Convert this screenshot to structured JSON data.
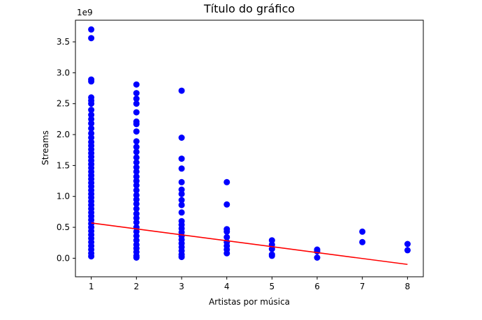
{
  "chart_data": {
    "type": "scatter",
    "title": "Título do gráfico",
    "xlabel": "Artistas por música",
    "ylabel": "Streams",
    "y_offset_label": "1e9",
    "xlim": [
      0.65,
      8.35
    ],
    "ylim": [
      -0.3,
      3.85
    ],
    "x_ticks": [
      1,
      2,
      3,
      4,
      5,
      6,
      7,
      8
    ],
    "x_tick_labels": [
      "1",
      "2",
      "3",
      "4",
      "5",
      "6",
      "7",
      "8"
    ],
    "y_ticks": [
      0.0,
      0.5,
      1.0,
      1.5,
      2.0,
      2.5,
      3.0,
      3.5
    ],
    "y_tick_labels": [
      "0.0",
      "0.5",
      "1.0",
      "1.5",
      "2.0",
      "2.5",
      "3.0",
      "3.5"
    ],
    "grid": false,
    "colors": {
      "points": "#0000ff",
      "trend": "#ff0000",
      "axes": "#000000"
    },
    "series": [
      {
        "kind": "points",
        "points": [
          [
            1,
            3.7
          ],
          [
            1,
            3.56
          ],
          [
            1,
            2.89
          ],
          [
            1,
            2.86
          ],
          [
            1,
            2.6
          ],
          [
            1,
            2.55
          ],
          [
            1,
            2.5
          ],
          [
            1,
            2.4
          ],
          [
            1,
            2.32
          ],
          [
            1,
            2.25
          ],
          [
            1,
            2.18
          ],
          [
            1,
            2.1
          ],
          [
            1,
            2.02
          ],
          [
            1,
            1.95
          ],
          [
            1,
            1.88
          ],
          [
            1,
            1.82
          ],
          [
            1,
            1.76
          ],
          [
            1,
            1.7
          ],
          [
            1,
            1.64
          ],
          [
            1,
            1.58
          ],
          [
            1,
            1.52
          ],
          [
            1,
            1.46
          ],
          [
            1,
            1.4
          ],
          [
            1,
            1.34
          ],
          [
            1,
            1.28
          ],
          [
            1,
            1.22
          ],
          [
            1,
            1.16
          ],
          [
            1,
            1.1
          ],
          [
            1,
            1.04
          ],
          [
            1,
            0.98
          ],
          [
            1,
            0.92
          ],
          [
            1,
            0.86
          ],
          [
            1,
            0.8
          ],
          [
            1,
            0.74
          ],
          [
            1,
            0.68
          ],
          [
            1,
            0.62
          ],
          [
            1,
            0.56
          ],
          [
            1,
            0.5
          ],
          [
            1,
            0.44
          ],
          [
            1,
            0.38
          ],
          [
            1,
            0.32
          ],
          [
            1,
            0.26
          ],
          [
            1,
            0.2
          ],
          [
            1,
            0.14
          ],
          [
            1,
            0.08
          ],
          [
            1,
            0.03
          ],
          [
            2,
            2.81
          ],
          [
            2,
            2.67
          ],
          [
            2,
            2.58
          ],
          [
            2,
            2.5
          ],
          [
            2,
            2.36
          ],
          [
            2,
            2.21
          ],
          [
            2,
            2.17
          ],
          [
            2,
            2.05
          ],
          [
            2,
            1.89
          ],
          [
            2,
            1.8
          ],
          [
            2,
            1.72
          ],
          [
            2,
            1.63
          ],
          [
            2,
            1.55
          ],
          [
            2,
            1.47
          ],
          [
            2,
            1.4
          ],
          [
            2,
            1.32
          ],
          [
            2,
            1.25
          ],
          [
            2,
            1.18
          ],
          [
            2,
            1.1
          ],
          [
            2,
            1.02
          ],
          [
            2,
            0.95
          ],
          [
            2,
            0.88
          ],
          [
            2,
            0.8
          ],
          [
            2,
            0.72
          ],
          [
            2,
            0.65
          ],
          [
            2,
            0.58
          ],
          [
            2,
            0.5
          ],
          [
            2,
            0.43
          ],
          [
            2,
            0.36
          ],
          [
            2,
            0.29
          ],
          [
            2,
            0.22
          ],
          [
            2,
            0.16
          ],
          [
            2,
            0.1
          ],
          [
            2,
            0.04
          ],
          [
            2,
            0.01
          ],
          [
            3,
            2.71
          ],
          [
            3,
            1.95
          ],
          [
            3,
            1.61
          ],
          [
            3,
            1.45
          ],
          [
            3,
            1.23
          ],
          [
            3,
            1.11
          ],
          [
            3,
            1.04
          ],
          [
            3,
            0.94
          ],
          [
            3,
            0.86
          ],
          [
            3,
            0.74
          ],
          [
            3,
            0.6
          ],
          [
            3,
            0.54
          ],
          [
            3,
            0.48
          ],
          [
            3,
            0.42
          ],
          [
            3,
            0.36
          ],
          [
            3,
            0.3
          ],
          [
            3,
            0.24
          ],
          [
            3,
            0.18
          ],
          [
            3,
            0.12
          ],
          [
            3,
            0.06
          ],
          [
            3,
            0.02
          ],
          [
            4,
            1.23
          ],
          [
            4,
            0.87
          ],
          [
            4,
            0.47
          ],
          [
            4,
            0.43
          ],
          [
            4,
            0.34
          ],
          [
            4,
            0.26
          ],
          [
            4,
            0.2
          ],
          [
            4,
            0.14
          ],
          [
            4,
            0.08
          ],
          [
            5,
            0.29
          ],
          [
            5,
            0.22
          ],
          [
            5,
            0.15
          ],
          [
            5,
            0.06
          ],
          [
            5,
            0.04
          ],
          [
            6,
            0.14
          ],
          [
            6,
            0.11
          ],
          [
            6,
            0.01
          ],
          [
            7,
            0.43
          ],
          [
            7,
            0.26
          ],
          [
            8,
            0.23
          ],
          [
            8,
            0.13
          ]
        ]
      },
      {
        "kind": "trend",
        "points": [
          [
            1,
            0.57
          ],
          [
            8,
            -0.1
          ]
        ]
      }
    ]
  }
}
